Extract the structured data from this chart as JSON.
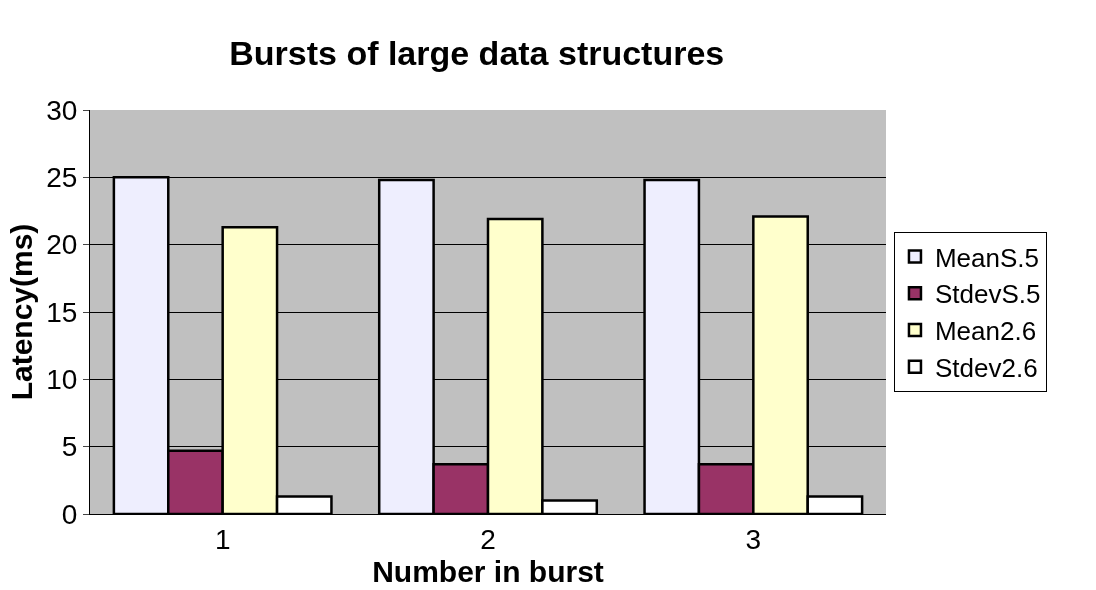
{
  "chart_data": {
    "type": "bar",
    "title": "Bursts of large data structures",
    "xlabel": "Number in burst",
    "ylabel": "Latency(ms)",
    "categories": [
      "1",
      "2",
      "3"
    ],
    "series": [
      {
        "name": "MeanS.5",
        "color": "#eeeefe",
        "values": [
          25.0,
          24.8,
          24.8
        ]
      },
      {
        "name": "StdevS.5",
        "color": "#993366",
        "values": [
          4.7,
          3.7,
          3.7
        ]
      },
      {
        "name": "Mean2.6",
        "color": "#ffffcc",
        "values": [
          21.3,
          21.9,
          22.1
        ]
      },
      {
        "name": "Stdev2.6",
        "color": "#ffffff",
        "values": [
          1.3,
          1.0,
          1.3
        ]
      }
    ],
    "ylim": [
      0,
      30
    ],
    "yticks": [
      0,
      5,
      10,
      15,
      20,
      25,
      30
    ],
    "grid": "y",
    "legend": "right"
  }
}
